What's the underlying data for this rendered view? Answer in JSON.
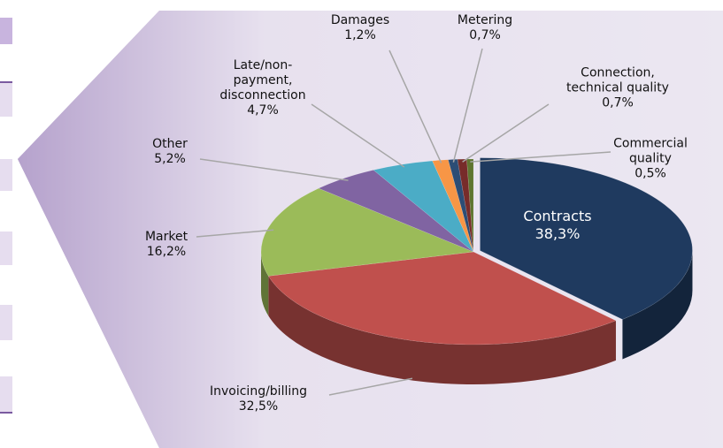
{
  "chart_data": {
    "type": "pie",
    "categories": [
      "Contracts",
      "Invoicing/billing",
      "Market",
      "Other",
      "Late/non-\npayment,\ndisconnection",
      "Damages",
      "Metering",
      "Connection,\ntechnical quality",
      "Commercial\nquality"
    ],
    "values": [
      38.3,
      32.5,
      16.2,
      5.2,
      4.7,
      1.2,
      0.7,
      0.7,
      0.5
    ],
    "value_labels": [
      "38,3%",
      "32,5%",
      "16,2%",
      "5,2%",
      "4,7%",
      "1,2%",
      "0,7%",
      "0,7%",
      "0,5%"
    ],
    "colors": [
      "#1f3a5f",
      "#c0504d",
      "#9bbb59",
      "#8064a2",
      "#4bacc6",
      "#f79646",
      "#2c4d75",
      "#772c2a",
      "#5f7530"
    ]
  }
}
